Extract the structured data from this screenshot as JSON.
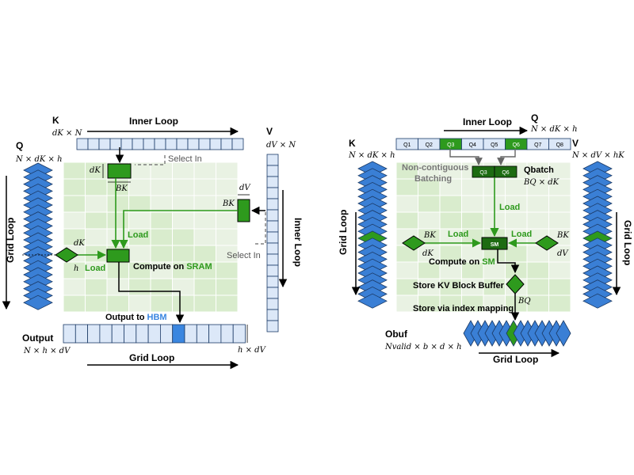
{
  "colors": {
    "cell_blue": "#dce8f8",
    "diamond_blue": "#3a7fd5",
    "green": "#2e9a1d",
    "dark_green": "#1d6b12",
    "grid_light": "#e9f2e3",
    "grid_mid": "#d9eccd",
    "hbm_blue": "#3a86e0",
    "arrow_gray": "#555555"
  },
  "left": {
    "k_label": "K",
    "k_dim": "dK × N",
    "inner_loop_top": "Inner Loop",
    "v_label": "V",
    "v_dim": "dV × N",
    "q_label": "Q",
    "q_dim": "N × dK × h",
    "grid_loop_side": "Grid Loop",
    "select_in_top": "Select In",
    "select_in_right": "Select In",
    "inner_loop_side": "Inner Loop",
    "dk_top": "dK",
    "bk_top": "BK",
    "dv_right": "dV",
    "bk_right": "BK",
    "dk_q": "dK",
    "h_q": "h",
    "load_1": "Load",
    "load_2": "Load",
    "compute_prefix": "Compute on ",
    "compute_highlight": "SRAM",
    "output_prefix": "Output to ",
    "output_highlight": "HBM",
    "output_label": "Output",
    "output_dim": "N × h × dV",
    "output_side_dim": "h × dV",
    "grid_loop_bottom": "Grid Loop"
  },
  "right": {
    "q_label": "Q",
    "q_dim": "N × dK × h",
    "inner_loop_top": "Inner Loop",
    "q_cells": [
      "Q1",
      "Q2",
      "Q3",
      "Q4",
      "Q5",
      "Q6",
      "Q7",
      "Q8"
    ],
    "k_label": "K",
    "k_dim": "N × dK × h",
    "v_label": "V",
    "v_dim": "N × dV × hK",
    "non_contiguous": "Non-contiguous",
    "batching": "Batching",
    "qbatch_label": "Qbatch",
    "qbatch_dim": "BQ × dK",
    "qbatch_cells": [
      "Q3",
      "Q6"
    ],
    "grid_loop_left": "Grid Loop",
    "grid_loop_right": "Grid Loop",
    "load_top": "Load",
    "load_left": "Load",
    "load_right": "Load",
    "sm_label": "SM",
    "bk_left": "BK",
    "dk_left": "dK",
    "bk_right": "BK",
    "dv_right": "dV",
    "compute_prefix": "Compute on ",
    "compute_highlight": "SM",
    "store_buffer": "Store KV Block Buffer",
    "store_index": "Store via index mapping",
    "bq_label": "BQ",
    "obuf_label": "Obuf",
    "obuf_dim": "Nvalid × b × d × h",
    "grid_loop_bottom": "Grid Loop"
  }
}
